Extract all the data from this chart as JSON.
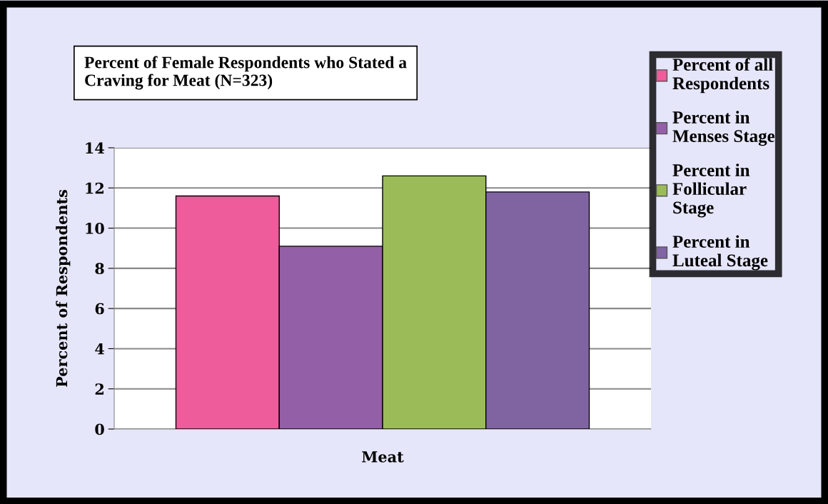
{
  "chart_data": {
    "type": "bar",
    "title": "Percent of Female Respondents who Stated a Craving for Meat (N=323)",
    "ylabel": "Percent of Respondents",
    "categories": [
      "Meat"
    ],
    "series": [
      {
        "name": "Percent of all Respondents",
        "color": "#ee5c9b",
        "values": [
          11.6
        ]
      },
      {
        "name": "Percent in Menses Stage",
        "color": "#9360a7",
        "values": [
          9.1
        ]
      },
      {
        "name": "Percent in Follicular Stage",
        "color": "#9bbb59",
        "values": [
          12.6
        ]
      },
      {
        "name": "Percent in Luteal Stage",
        "color": "#8064a2",
        "values": [
          11.8
        ]
      }
    ],
    "ylim": [
      0,
      14
    ],
    "yticks": [
      0,
      2,
      4,
      6,
      8,
      10,
      12,
      14
    ],
    "grid": "y",
    "legend": "right"
  }
}
